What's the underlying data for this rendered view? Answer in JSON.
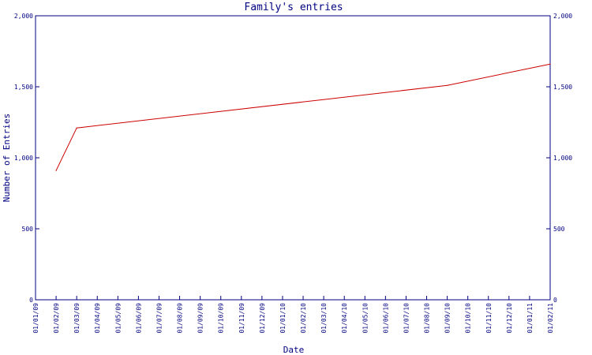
{
  "chart_data": {
    "type": "line",
    "title": "Family's entries",
    "xlabel": "Date",
    "ylabel": "Number of Entries",
    "ylim": [
      0,
      2000
    ],
    "y_ticks": [
      "0",
      "500",
      "1,000",
      "1,500",
      "2,000"
    ],
    "y_tick_values": [
      0,
      500,
      1000,
      1500,
      2000
    ],
    "x_tick_labels": [
      "01/01/09",
      "01/02/09",
      "01/03/09",
      "01/04/09",
      "01/05/09",
      "01/06/09",
      "01/07/09",
      "01/08/09",
      "01/09/09",
      "01/10/09",
      "01/11/09",
      "01/12/09",
      "01/01/10",
      "01/02/10",
      "01/03/10",
      "01/04/10",
      "01/05/10",
      "01/06/10",
      "01/07/10",
      "01/08/10",
      "01/09/10",
      "01/10/10",
      "01/11/10",
      "01/12/10",
      "01/01/11",
      "01/02/11"
    ],
    "grid": false,
    "series": [
      {
        "color": "#cc0000",
        "points": [
          {
            "x": "01/02/09",
            "y": 910
          },
          {
            "x": "01/03/09",
            "y": 1210
          },
          {
            "x": "01/09/10",
            "y": 1510
          },
          {
            "x": "01/02/11",
            "y": 1660
          }
        ]
      }
    ],
    "axis_color": "#000080"
  }
}
